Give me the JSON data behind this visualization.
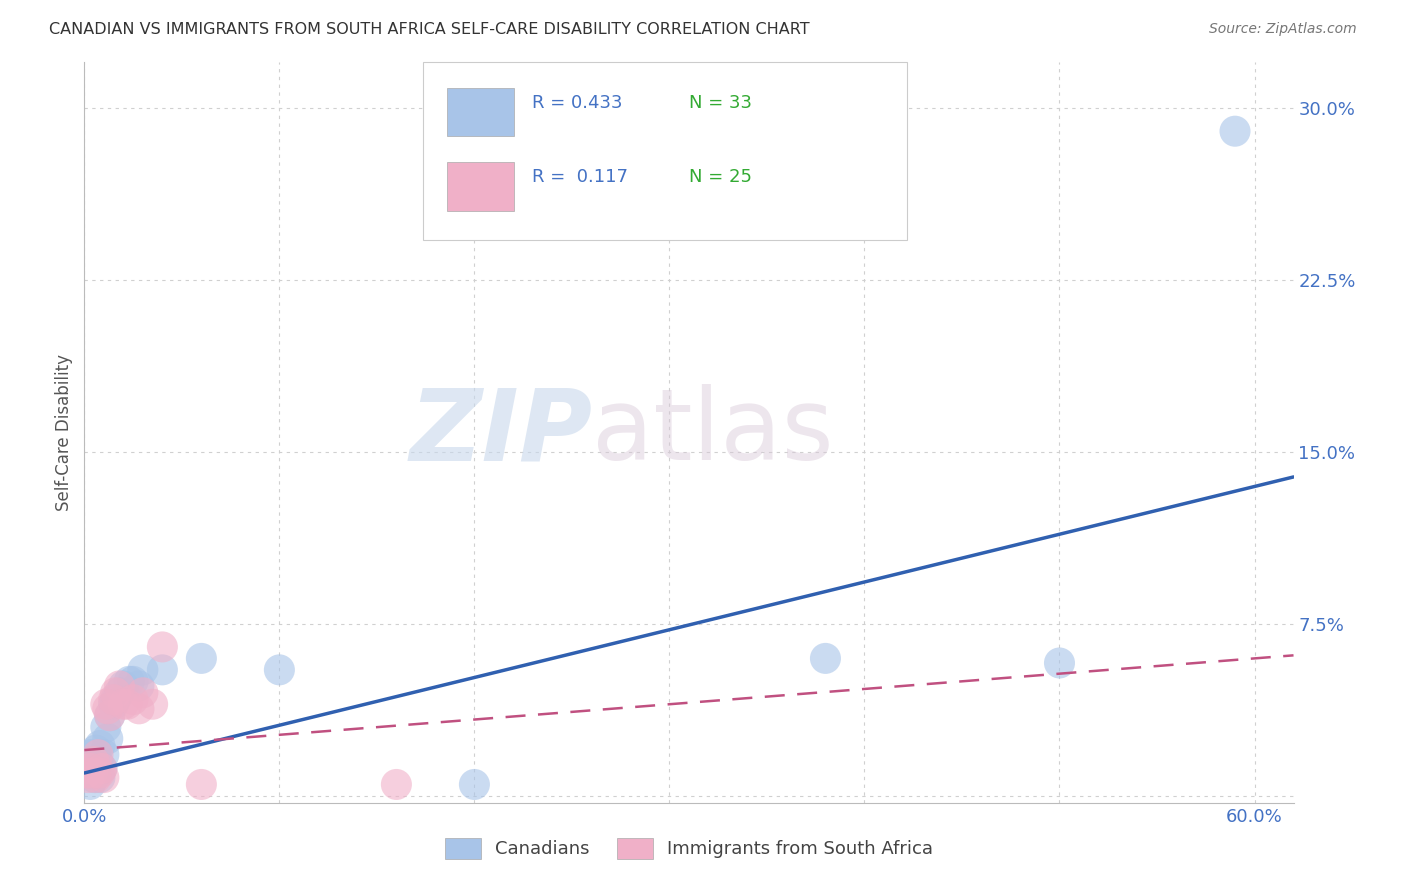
{
  "title": "CANADIAN VS IMMIGRANTS FROM SOUTH AFRICA SELF-CARE DISABILITY CORRELATION CHART",
  "source": "Source: ZipAtlas.com",
  "ylabel": "Self-Care Disability",
  "watermark_zip": "ZIP",
  "watermark_atlas": "atlas",
  "xlim": [
    0.0,
    0.62
  ],
  "ylim": [
    -0.003,
    0.32
  ],
  "canadian_R": 0.433,
  "canadian_N": 33,
  "immigrant_R": 0.117,
  "immigrant_N": 25,
  "canadian_color": "#a8c4e8",
  "canadian_line_color": "#3060b0",
  "immigrant_color": "#f0b0c8",
  "immigrant_line_color": "#c05080",
  "background_color": "#ffffff",
  "grid_color": "#d0d0d0",
  "title_color": "#333333",
  "axis_label_color": "#555555",
  "tick_color": "#4472c4",
  "legend_color": "#4472c4",
  "n_color": "#33aa33",
  "canadian_x": [
    0.001,
    0.002,
    0.003,
    0.003,
    0.004,
    0.005,
    0.005,
    0.006,
    0.006,
    0.007,
    0.007,
    0.008,
    0.008,
    0.009,
    0.01,
    0.011,
    0.012,
    0.013,
    0.015,
    0.016,
    0.018,
    0.02,
    0.023,
    0.025,
    0.028,
    0.03,
    0.04,
    0.06,
    0.1,
    0.2,
    0.38,
    0.5,
    0.59
  ],
  "canadian_y": [
    0.01,
    0.012,
    0.005,
    0.018,
    0.01,
    0.008,
    0.015,
    0.012,
    0.02,
    0.01,
    0.015,
    0.008,
    0.022,
    0.012,
    0.018,
    0.03,
    0.025,
    0.035,
    0.04,
    0.042,
    0.045,
    0.048,
    0.05,
    0.05,
    0.048,
    0.055,
    0.055,
    0.06,
    0.055,
    0.005,
    0.06,
    0.058,
    0.29
  ],
  "immigrant_x": [
    0.001,
    0.002,
    0.003,
    0.004,
    0.005,
    0.006,
    0.007,
    0.008,
    0.009,
    0.01,
    0.011,
    0.012,
    0.013,
    0.015,
    0.016,
    0.018,
    0.02,
    0.022,
    0.025,
    0.028,
    0.03,
    0.035,
    0.04,
    0.06,
    0.16
  ],
  "immigrant_y": [
    0.01,
    0.008,
    0.012,
    0.01,
    0.015,
    0.008,
    0.018,
    0.01,
    0.012,
    0.008,
    0.04,
    0.038,
    0.035,
    0.042,
    0.045,
    0.048,
    0.04,
    0.04,
    0.042,
    0.038,
    0.045,
    0.04,
    0.065,
    0.005,
    0.005
  ]
}
